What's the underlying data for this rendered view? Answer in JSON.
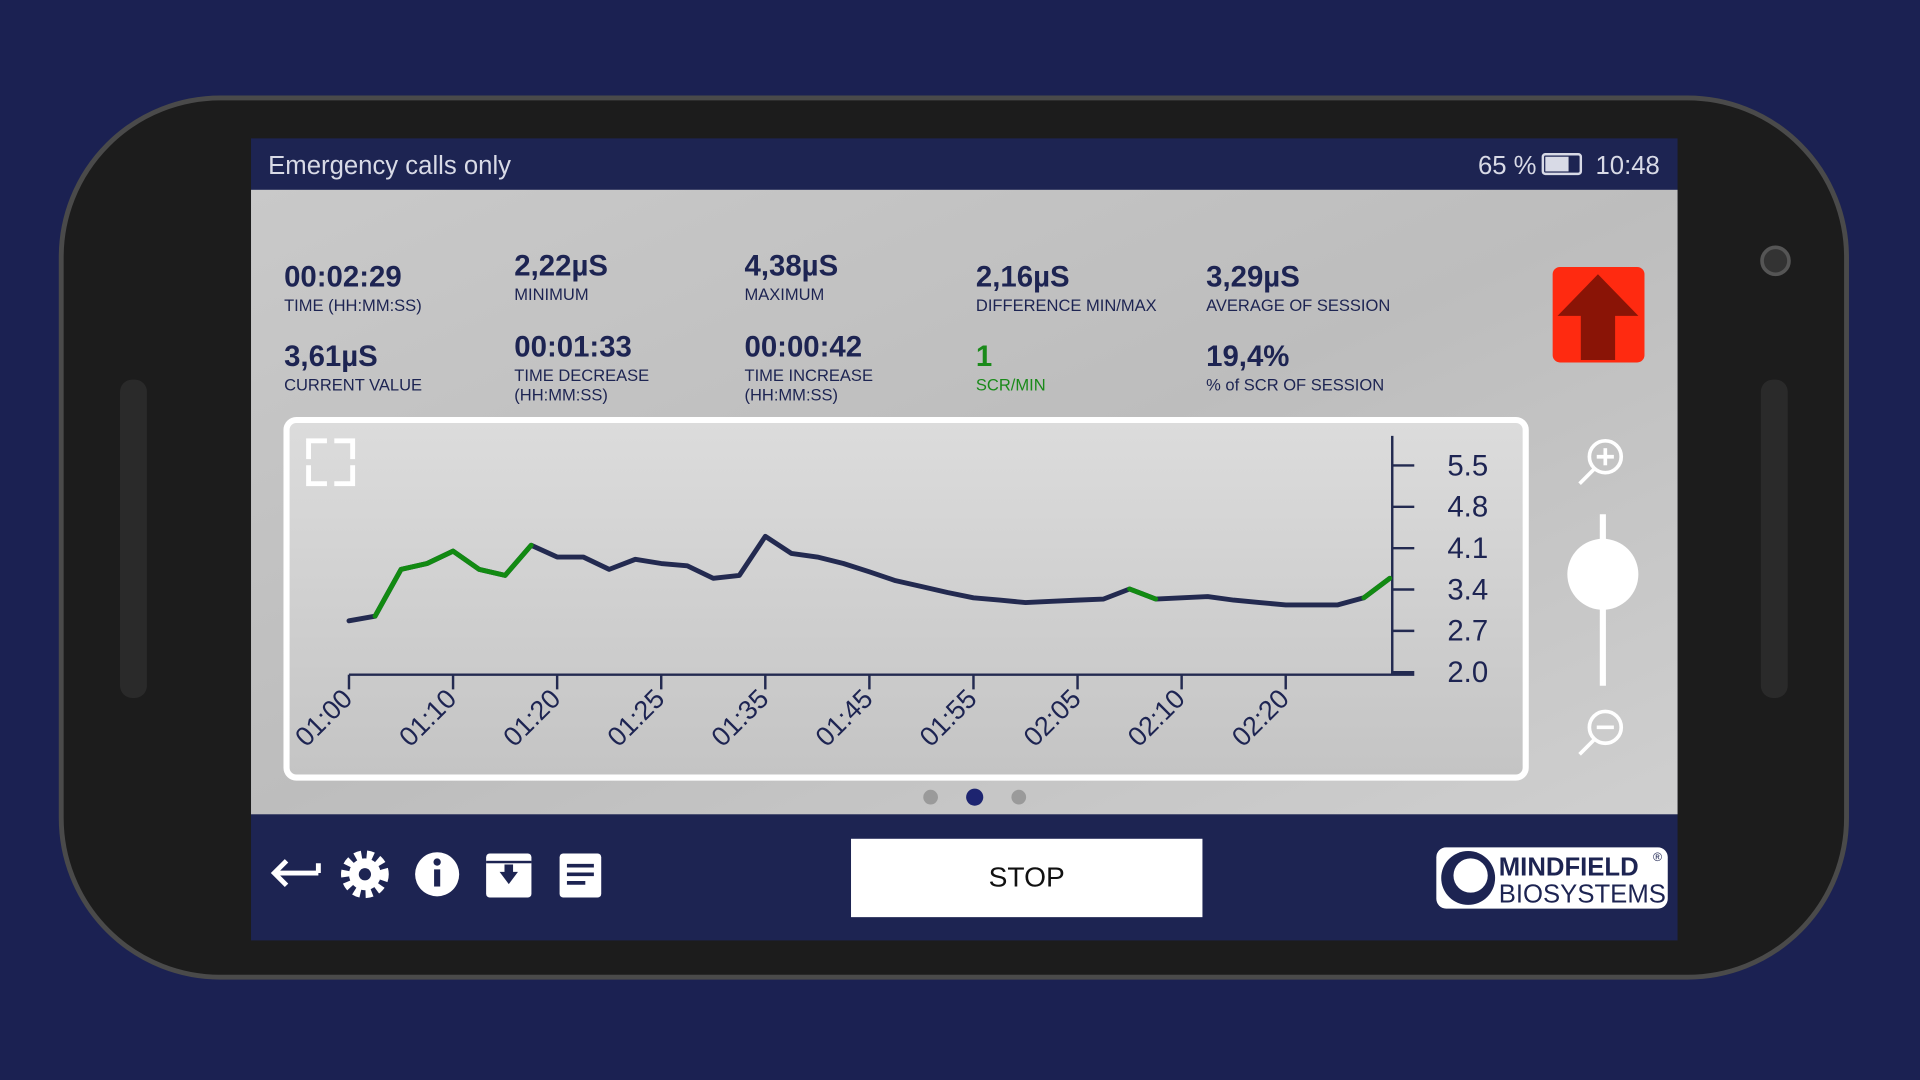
{
  "status_bar": {
    "carrier": "Emergency calls only",
    "battery": "65 %",
    "time": "10:48"
  },
  "stats": [
    {
      "value": "00:02:29",
      "label": [
        "TIME (HH:MM:SS)"
      ]
    },
    {
      "value": "2,22µS",
      "label": [
        "MINIMUM"
      ]
    },
    {
      "value": "4,38µS",
      "label": [
        "MAXIMUM"
      ]
    },
    {
      "value": "2,16µS",
      "label": [
        "DIFFERENCE MIN/MAX"
      ]
    },
    {
      "value": "3,29µS",
      "label": [
        "AVERAGE OF SESSION"
      ]
    },
    {
      "value": "3,61µS",
      "label": [
        "CURRENT VALUE"
      ]
    },
    {
      "value": "00:01:33",
      "label": [
        "TIME DECREASE",
        "(HH:MM:SS)"
      ]
    },
    {
      "value": "00:00:42",
      "label": [
        "TIME INCREASE",
        "(HH:MM:SS)"
      ]
    },
    {
      "value": "1",
      "label": [
        "SCR/MIN"
      ],
      "color": "#1a8a1a"
    },
    {
      "value": "19,4%",
      "label": [
        "% of SCR OF SESSION"
      ]
    }
  ],
  "stop_button": "STOP",
  "logo": {
    "line1": "MINDFIELD",
    "line2": "BIOSYSTEMS",
    "mark": "®"
  },
  "chart_data": {
    "type": "line",
    "categories": [
      "01:00",
      null,
      null,
      null,
      "01:10",
      null,
      null,
      null,
      "01:20",
      null,
      null,
      null,
      "01:25",
      null,
      null,
      null,
      "01:35",
      null,
      null,
      null,
      "01:45",
      null,
      null,
      null,
      "01:55",
      null,
      null,
      null,
      "02:05",
      null,
      null,
      null,
      "02:10",
      null,
      null,
      null,
      "02:20",
      null,
      null,
      null,
      null
    ],
    "series": [
      {
        "color": "#232a50",
        "values": [
          2.87,
          2.95,
          3.74,
          3.84,
          4.05,
          3.74,
          3.64,
          4.15,
          3.95,
          3.95,
          3.74,
          3.91,
          3.84,
          3.8,
          3.59,
          3.64,
          4.3,
          4.01,
          3.95,
          3.84,
          3.7,
          3.55,
          3.45,
          3.35,
          3.26,
          3.22,
          3.18,
          3.2,
          3.22,
          3.24,
          3.41,
          3.24,
          3.26,
          3.28,
          3.22,
          3.18,
          3.14,
          3.14,
          3.14,
          3.26,
          3.59
        ]
      },
      {
        "color": "#128a12",
        "values": [
          null,
          2.95,
          3.74,
          3.84,
          4.05,
          3.74,
          3.64,
          4.15,
          null,
          null,
          null,
          null,
          null,
          null,
          null,
          null,
          null,
          null,
          null,
          null,
          null,
          null,
          null,
          null,
          null,
          null,
          null,
          null,
          null,
          null,
          3.41,
          3.24,
          null,
          null,
          null,
          null,
          null,
          null,
          null,
          3.26,
          3.59
        ]
      }
    ],
    "ylim": [
      2.0,
      6.0
    ],
    "yticks": [
      {
        "value": 2.0,
        "label": "2.0"
      },
      2.7,
      3.4,
      4.1,
      4.8,
      5.5
    ]
  }
}
